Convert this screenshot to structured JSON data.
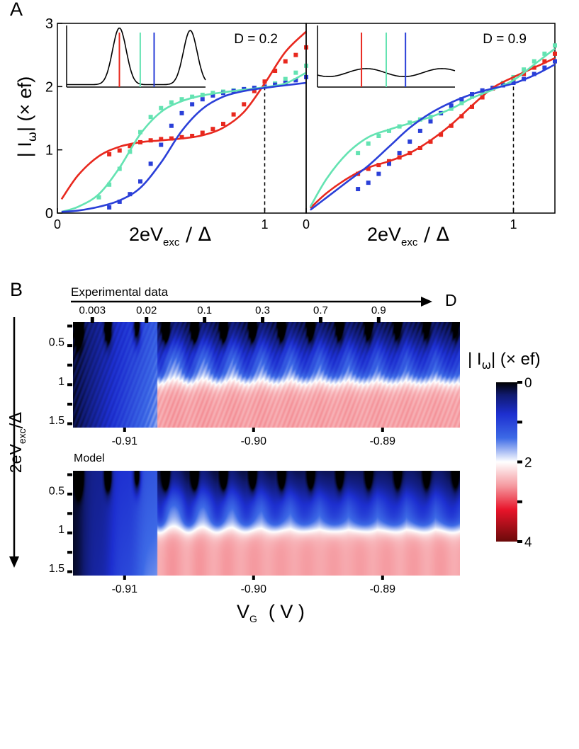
{
  "panel_a": {
    "label": "A",
    "ylabel_main": "| I",
    "ylabel_sub": "ω",
    "ylabel_rest": "| (× ef)",
    "xlabel_main": "2eV",
    "xlabel_sub": "exc",
    "xlabel_rest": " / Δ",
    "colors": {
      "red": "#e8281e",
      "teal": "#64e3b2",
      "blue": "#2a3fd8"
    }
  },
  "panel_b": {
    "label": "B",
    "exp_title": "Experimental data",
    "model_title": "Model",
    "d_label": "D",
    "d_ticks": [
      "0.003",
      "0.02",
      "0.1",
      "0.3",
      "0.7",
      "0.9"
    ],
    "y_ticks": [
      "0.5",
      "1",
      "1.5"
    ],
    "x_ticks": [
      "-0.91",
      "-0.90",
      "-0.89"
    ],
    "ylabel_main": "2eV",
    "ylabel_sub": "exc",
    "ylabel_rest": "/Δ",
    "xlabel_main": "V",
    "xlabel_sub": "G",
    "xlabel_rest": "( V )",
    "colorbar_label": "| I",
    "colorbar_sub": "ω",
    "colorbar_rest": "| (× ef)",
    "colorbar_ticks": [
      "0",
      "2",
      "4"
    ],
    "colorbar_range": [
      0,
      4
    ]
  },
  "chart_data": [
    {
      "type": "line",
      "title": "D = 0.2",
      "xlabel": "2eVexc / Δ",
      "ylabel": "| Iω | (× ef)",
      "xlim": [
        0,
        1.2
      ],
      "ylim": [
        0,
        3
      ],
      "x_ticks": [
        "0",
        "1"
      ],
      "y_ticks": [
        "0",
        "1",
        "2",
        "3"
      ],
      "guide_x": 1,
      "series": [
        {
          "name": "red",
          "color": "#e8281e",
          "x": [
            0.02,
            0.1,
            0.2,
            0.3,
            0.4,
            0.5,
            0.6,
            0.7,
            0.8,
            0.9,
            1.0,
            1.1,
            1.2
          ],
          "values": [
            0.22,
            0.6,
            0.9,
            1.05,
            1.12,
            1.15,
            1.18,
            1.23,
            1.35,
            1.6,
            2.05,
            2.55,
            2.87
          ]
        },
        {
          "name": "teal",
          "color": "#64e3b2",
          "x": [
            0.02,
            0.1,
            0.2,
            0.3,
            0.4,
            0.5,
            0.6,
            0.7,
            0.8,
            0.9,
            1.0,
            1.1,
            1.2
          ],
          "values": [
            0.02,
            0.1,
            0.3,
            0.72,
            1.25,
            1.6,
            1.77,
            1.86,
            1.91,
            1.95,
            1.99,
            2.05,
            2.22
          ]
        },
        {
          "name": "blue",
          "color": "#2a3fd8",
          "x": [
            0.02,
            0.1,
            0.2,
            0.3,
            0.4,
            0.5,
            0.6,
            0.7,
            0.8,
            0.9,
            1.0,
            1.1,
            1.2
          ],
          "values": [
            0.02,
            0.04,
            0.1,
            0.2,
            0.4,
            0.8,
            1.3,
            1.65,
            1.84,
            1.93,
            1.98,
            2.02,
            2.06
          ]
        }
      ],
      "markers": [
        {
          "name": "red",
          "color": "#e8281e",
          "x": [
            0.25,
            0.3,
            0.35,
            0.4,
            0.45,
            0.5,
            0.55,
            0.6,
            0.65,
            0.7,
            0.75,
            0.8,
            0.85,
            0.9,
            0.95,
            1.0,
            1.05,
            1.1,
            1.15,
            1.2
          ],
          "values": [
            0.93,
            0.99,
            1.06,
            1.12,
            1.15,
            1.17,
            1.18,
            1.2,
            1.22,
            1.27,
            1.33,
            1.41,
            1.56,
            1.72,
            1.93,
            2.08,
            2.25,
            2.4,
            2.5,
            2.62
          ]
        },
        {
          "name": "teal",
          "color": "#64e3b2",
          "x": [
            0.2,
            0.25,
            0.3,
            0.35,
            0.4,
            0.45,
            0.5,
            0.55,
            0.6,
            0.65,
            0.7,
            0.75,
            0.8,
            0.85,
            0.9,
            0.95,
            1.0,
            1.05,
            1.1,
            1.15,
            1.2
          ],
          "values": [
            0.25,
            0.45,
            0.7,
            0.97,
            1.28,
            1.52,
            1.66,
            1.75,
            1.8,
            1.84,
            1.87,
            1.9,
            1.92,
            1.94,
            1.96,
            1.98,
            2.0,
            2.05,
            2.12,
            2.22,
            2.33
          ]
        },
        {
          "name": "blue",
          "color": "#2a3fd8",
          "x": [
            0.25,
            0.3,
            0.35,
            0.4,
            0.45,
            0.5,
            0.55,
            0.6,
            0.65,
            0.7,
            0.75,
            0.8,
            0.85,
            0.9,
            0.95,
            1.0,
            1.05,
            1.1,
            1.15,
            1.2
          ],
          "values": [
            0.09,
            0.18,
            0.3,
            0.5,
            0.78,
            1.08,
            1.38,
            1.58,
            1.72,
            1.8,
            1.86,
            1.9,
            1.93,
            1.96,
            1.98,
            2.0,
            2.03,
            2.06,
            2.1,
            2.15
          ]
        }
      ],
      "inset": {
        "type": "line",
        "description": "transmission resonance",
        "marker_lines": [
          "red",
          "teal",
          "blue"
        ]
      }
    },
    {
      "type": "line",
      "title": "D = 0.9",
      "xlabel": "2eVexc / Δ",
      "ylabel": "| Iω | (× ef)",
      "xlim": [
        0,
        1.2
      ],
      "ylim": [
        0,
        3
      ],
      "x_ticks": [
        "0",
        "1"
      ],
      "guide_x": 1,
      "series": [
        {
          "name": "red",
          "color": "#e8281e",
          "x": [
            0.02,
            0.1,
            0.2,
            0.3,
            0.4,
            0.5,
            0.6,
            0.7,
            0.8,
            0.9,
            1.0,
            1.1,
            1.2
          ],
          "values": [
            0.08,
            0.32,
            0.55,
            0.72,
            0.82,
            0.95,
            1.15,
            1.4,
            1.7,
            1.98,
            2.15,
            2.3,
            2.45
          ]
        },
        {
          "name": "teal",
          "color": "#64e3b2",
          "x": [
            0.02,
            0.1,
            0.2,
            0.3,
            0.4,
            0.5,
            0.6,
            0.7,
            0.8,
            0.9,
            1.0,
            1.1,
            1.2
          ],
          "values": [
            0.1,
            0.55,
            0.95,
            1.2,
            1.32,
            1.42,
            1.52,
            1.65,
            1.82,
            1.95,
            2.1,
            2.35,
            2.6
          ]
        },
        {
          "name": "blue",
          "color": "#2a3fd8",
          "x": [
            0.02,
            0.1,
            0.2,
            0.3,
            0.4,
            0.5,
            0.6,
            0.7,
            0.8,
            0.9,
            1.0,
            1.1,
            1.2
          ],
          "values": [
            0.05,
            0.25,
            0.5,
            0.75,
            1.05,
            1.35,
            1.58,
            1.75,
            1.88,
            1.97,
            2.05,
            2.18,
            2.35
          ]
        }
      ],
      "markers": [
        {
          "name": "red",
          "color": "#e8281e",
          "x": [
            0.25,
            0.3,
            0.35,
            0.4,
            0.45,
            0.5,
            0.55,
            0.6,
            0.65,
            0.7,
            0.75,
            0.8,
            0.85,
            0.9,
            0.95,
            1.0,
            1.05,
            1.1,
            1.15,
            1.2
          ],
          "values": [
            0.62,
            0.7,
            0.76,
            0.82,
            0.88,
            0.95,
            1.03,
            1.13,
            1.24,
            1.38,
            1.53,
            1.68,
            1.83,
            1.97,
            2.05,
            2.12,
            2.2,
            2.3,
            2.4,
            2.52
          ]
        },
        {
          "name": "teal",
          "color": "#64e3b2",
          "x": [
            0.25,
            0.3,
            0.35,
            0.4,
            0.45,
            0.5,
            0.55,
            0.6,
            0.65,
            0.7,
            0.75,
            0.8,
            0.85,
            0.9,
            0.95,
            1.0,
            1.05,
            1.1,
            1.15,
            1.2
          ],
          "values": [
            0.95,
            1.1,
            1.22,
            1.3,
            1.37,
            1.43,
            1.48,
            1.52,
            1.58,
            1.65,
            1.74,
            1.84,
            1.92,
            1.98,
            2.06,
            2.15,
            2.27,
            2.4,
            2.52,
            2.65
          ]
        },
        {
          "name": "blue",
          "color": "#2a3fd8",
          "x": [
            0.25,
            0.3,
            0.35,
            0.4,
            0.45,
            0.5,
            0.55,
            0.6,
            0.65,
            0.7,
            0.75,
            0.8,
            0.85,
            0.9,
            0.95,
            1.0,
            1.05,
            1.1,
            1.15,
            1.2
          ],
          "values": [
            0.38,
            0.48,
            0.62,
            0.78,
            0.95,
            1.13,
            1.3,
            1.45,
            1.58,
            1.7,
            1.8,
            1.88,
            1.94,
            1.98,
            2.02,
            2.06,
            2.12,
            2.2,
            2.3,
            2.4
          ]
        }
      ],
      "inset": {
        "type": "line",
        "description": "transmission resonance",
        "marker_lines": [
          "red",
          "teal",
          "blue"
        ]
      }
    },
    {
      "type": "heatmap",
      "title": "Experimental data",
      "xlabel": "VG (V)",
      "ylabel": "2eVexc/Δ",
      "xlim": [
        -0.914,
        -0.884
      ],
      "ylim": [
        0.25,
        1.6
      ],
      "x_ticks": [
        -0.91,
        -0.9,
        -0.89
      ],
      "y_ticks": [
        0.5,
        1,
        1.5
      ],
      "colorscale": "black-blue-white-red-darkred",
      "zlim": [
        0,
        4
      ],
      "d_values": [
        0.003,
        0.02,
        0.1,
        0.3,
        0.7,
        0.9
      ],
      "d_positions": [
        -0.9125,
        -0.9083,
        -0.9038,
        -0.8993,
        -0.8948,
        -0.8903
      ],
      "resonance_period": 0.00225,
      "threshold_vg": -0.9075
    },
    {
      "type": "heatmap",
      "title": "Model",
      "xlabel": "VG (V)",
      "ylabel": "2eVexc/Δ",
      "xlim": [
        -0.914,
        -0.884
      ],
      "ylim": [
        0.25,
        1.6
      ],
      "x_ticks": [
        -0.91,
        -0.9,
        -0.89
      ],
      "y_ticks": [
        0.5,
        1,
        1.5
      ],
      "colorscale": "black-blue-white-red-darkred",
      "zlim": [
        0,
        4
      ],
      "resonance_period": 0.00225,
      "threshold_vg": -0.9075
    }
  ]
}
